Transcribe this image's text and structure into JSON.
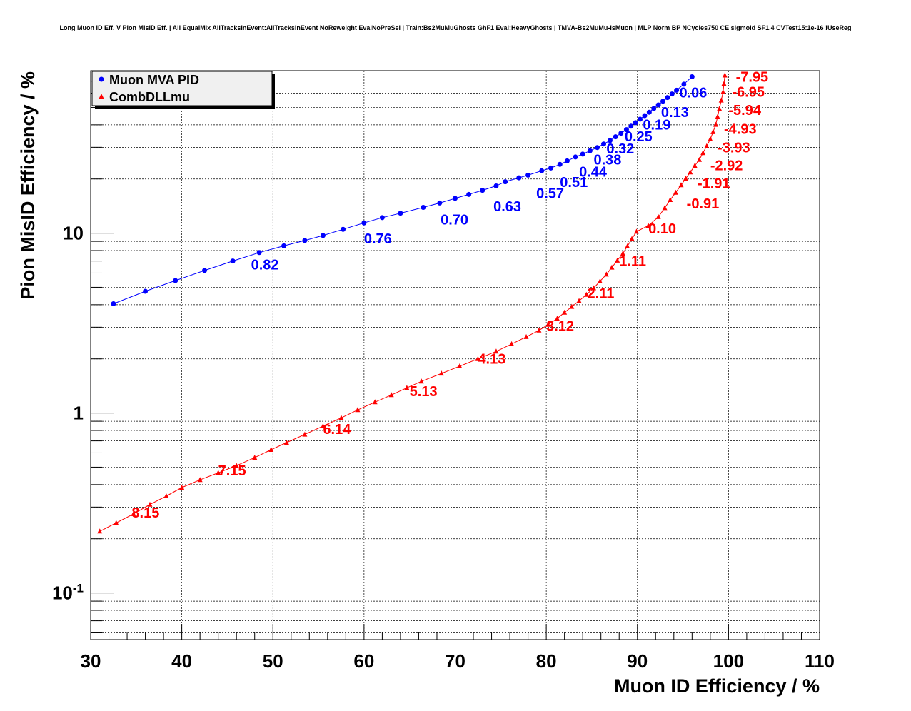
{
  "chart_data": {
    "type": "line",
    "title": "Long Muon ID Eff. V Pion MisID Eff. | All EqualMix AllTracksInEvent:AllTracksInEvent NoReweight EvalNoPreSel | Train:Bs2MuMuGhosts GhF1 Eval:HeavyGhosts | TMVA-Bs2MuMu-IsMuon | MLP Norm BP NCycles750 CE sigmoid SF1.4 CVTest15:1e-16 !UseReg",
    "xlabel": "Muon ID Efficiency / %",
    "ylabel": "Pion MisID Efficiency / %",
    "xlim": [
      30,
      110
    ],
    "ylim": [
      0.055,
      80
    ],
    "yscale": "log",
    "grid": true,
    "legend_position": "top-left",
    "x_ticks": [
      "30",
      "40",
      "50",
      "60",
      "70",
      "80",
      "90",
      "100",
      "110"
    ],
    "y_ticks": [
      {
        "value": 0.1,
        "base": "10",
        "exp": "-1"
      },
      {
        "value": 1,
        "base": "1",
        "exp": ""
      },
      {
        "value": 10,
        "base": "10",
        "exp": ""
      }
    ],
    "series": [
      {
        "name": "Muon MVA PID",
        "color": "#0000ff",
        "marker": "circle",
        "points": [
          [
            32.5,
            4.05
          ],
          [
            36.0,
            4.75
          ],
          [
            39.3,
            5.45
          ],
          [
            42.5,
            6.2
          ],
          [
            45.6,
            7.0
          ],
          [
            48.5,
            7.8
          ],
          [
            51.2,
            8.5
          ],
          [
            53.5,
            9.1
          ],
          [
            55.5,
            9.7
          ],
          [
            57.7,
            10.5
          ],
          [
            60.0,
            11.4
          ],
          [
            62.0,
            12.2
          ],
          [
            64.0,
            12.9
          ],
          [
            66.5,
            13.9
          ],
          [
            68.3,
            14.7
          ],
          [
            70.0,
            15.6
          ],
          [
            71.5,
            16.4
          ],
          [
            73.0,
            17.3
          ],
          [
            74.5,
            18.3
          ],
          [
            75.5,
            19.3
          ],
          [
            77.0,
            20.3
          ],
          [
            78.0,
            21.0
          ],
          [
            79.5,
            22.2
          ],
          [
            80.5,
            23.0
          ],
          [
            81.5,
            24.1
          ],
          [
            82.3,
            25.2
          ],
          [
            83.2,
            26.5
          ],
          [
            84.0,
            27.5
          ],
          [
            84.8,
            28.7
          ],
          [
            85.6,
            29.9
          ],
          [
            86.3,
            31.3
          ],
          [
            87.0,
            32.7
          ],
          [
            87.6,
            34.3
          ],
          [
            88.2,
            35.9
          ],
          [
            88.8,
            37.6
          ],
          [
            89.3,
            39.3
          ],
          [
            89.8,
            41.1
          ],
          [
            90.3,
            43.0
          ],
          [
            90.8,
            45.0
          ],
          [
            91.3,
            47.0
          ],
          [
            91.8,
            49.3
          ],
          [
            92.3,
            51.6
          ],
          [
            92.8,
            54.1
          ],
          [
            93.3,
            56.7
          ],
          [
            93.8,
            59.4
          ],
          [
            94.3,
            62.3
          ],
          [
            95.1,
            67.3
          ],
          [
            96.0,
            74.0
          ]
        ],
        "labels": [
          {
            "x": 94.6,
            "y": 60.5,
            "text": "0.06"
          },
          {
            "x": 92.6,
            "y": 47.0,
            "text": "0.13"
          },
          {
            "x": 90.6,
            "y": 40.2,
            "text": "0.19"
          },
          {
            "x": 88.6,
            "y": 34.5,
            "text": "0.25"
          },
          {
            "x": 86.6,
            "y": 29.6,
            "text": "0.32"
          },
          {
            "x": 85.2,
            "y": 25.6,
            "text": "0.38"
          },
          {
            "x": 83.6,
            "y": 22.0,
            "text": "0.44"
          },
          {
            "x": 81.5,
            "y": 19.2,
            "text": "0.51"
          },
          {
            "x": 78.9,
            "y": 16.7,
            "text": "0.57"
          },
          {
            "x": 74.2,
            "y": 14.1,
            "text": "0.63"
          },
          {
            "x": 68.4,
            "y": 11.9,
            "text": "0.70"
          },
          {
            "x": 60.0,
            "y": 9.35,
            "text": "0.76"
          },
          {
            "x": 47.6,
            "y": 6.7,
            "text": "0.82"
          }
        ]
      },
      {
        "name": "CombDLLmu",
        "color": "#ff0000",
        "marker": "triangle",
        "points": [
          [
            31.0,
            0.22
          ],
          [
            32.8,
            0.245
          ],
          [
            34.7,
            0.275
          ],
          [
            36.5,
            0.31
          ],
          [
            38.3,
            0.345
          ],
          [
            40.0,
            0.385
          ],
          [
            42.0,
            0.425
          ],
          [
            44.0,
            0.465
          ],
          [
            46.0,
            0.51
          ],
          [
            48.0,
            0.565
          ],
          [
            49.8,
            0.625
          ],
          [
            51.5,
            0.685
          ],
          [
            53.5,
            0.76
          ],
          [
            55.5,
            0.845
          ],
          [
            57.5,
            0.94
          ],
          [
            59.3,
            1.04
          ],
          [
            61.2,
            1.15
          ],
          [
            63.0,
            1.26
          ],
          [
            64.7,
            1.38
          ],
          [
            66.3,
            1.5
          ],
          [
            68.5,
            1.66
          ],
          [
            70.5,
            1.82
          ],
          [
            72.5,
            2.0
          ],
          [
            74.5,
            2.2
          ],
          [
            76.2,
            2.42
          ],
          [
            77.8,
            2.65
          ],
          [
            79.2,
            2.88
          ],
          [
            80.2,
            3.1
          ],
          [
            81.2,
            3.35
          ],
          [
            82.0,
            3.62
          ],
          [
            82.8,
            3.9
          ],
          [
            83.6,
            4.2
          ],
          [
            84.4,
            4.55
          ],
          [
            85.2,
            4.95
          ],
          [
            85.9,
            5.4
          ],
          [
            86.6,
            5.9
          ],
          [
            87.2,
            6.45
          ],
          [
            87.8,
            7.05
          ],
          [
            88.4,
            7.7
          ],
          [
            88.9,
            8.45
          ],
          [
            89.4,
            9.3
          ],
          [
            89.9,
            10.2
          ],
          [
            91.2,
            11.0
          ],
          [
            92.3,
            12.3
          ],
          [
            93.0,
            13.8
          ],
          [
            93.6,
            15.3
          ],
          [
            94.2,
            16.8
          ],
          [
            94.8,
            18.5
          ],
          [
            95.3,
            20.1
          ],
          [
            95.8,
            21.8
          ],
          [
            96.3,
            23.7
          ],
          [
            96.8,
            25.6
          ],
          [
            97.2,
            27.9
          ],
          [
            97.6,
            30.4
          ],
          [
            98.0,
            33.3
          ],
          [
            98.3,
            36.5
          ],
          [
            98.6,
            40.1
          ],
          [
            98.8,
            44.4
          ],
          [
            99.0,
            49.2
          ],
          [
            99.2,
            54.7
          ],
          [
            99.4,
            60.8
          ],
          [
            99.5,
            67.7
          ],
          [
            99.6,
            75.4
          ]
        ],
        "labels": [
          {
            "x": 100.8,
            "y": 74.0,
            "text": "-7.95"
          },
          {
            "x": 100.4,
            "y": 61.0,
            "text": "-6.95"
          },
          {
            "x": 100.0,
            "y": 48.5,
            "text": "-5.94"
          },
          {
            "x": 99.5,
            "y": 38.0,
            "text": "-4.93"
          },
          {
            "x": 98.8,
            "y": 30.0,
            "text": "-3.93"
          },
          {
            "x": 98.0,
            "y": 23.8,
            "text": "-2.92"
          },
          {
            "x": 96.6,
            "y": 19.0,
            "text": "-1.91"
          },
          {
            "x": 95.4,
            "y": 14.6,
            "text": "-0.91"
          },
          {
            "x": 91.2,
            "y": 10.6,
            "text": "0.10"
          },
          {
            "x": 88.0,
            "y": 7.0,
            "text": "1.11"
          },
          {
            "x": 84.5,
            "y": 4.65,
            "text": "2.11"
          },
          {
            "x": 80.0,
            "y": 3.05,
            "text": "3.12"
          },
          {
            "x": 72.5,
            "y": 2.0,
            "text": "4.13"
          },
          {
            "x": 65.0,
            "y": 1.32,
            "text": "5.13"
          },
          {
            "x": 55.5,
            "y": 0.815,
            "text": "6.14"
          },
          {
            "x": 44.0,
            "y": 0.48,
            "text": "7.15"
          },
          {
            "x": 34.5,
            "y": 0.28,
            "text": "8.15"
          }
        ]
      }
    ]
  }
}
